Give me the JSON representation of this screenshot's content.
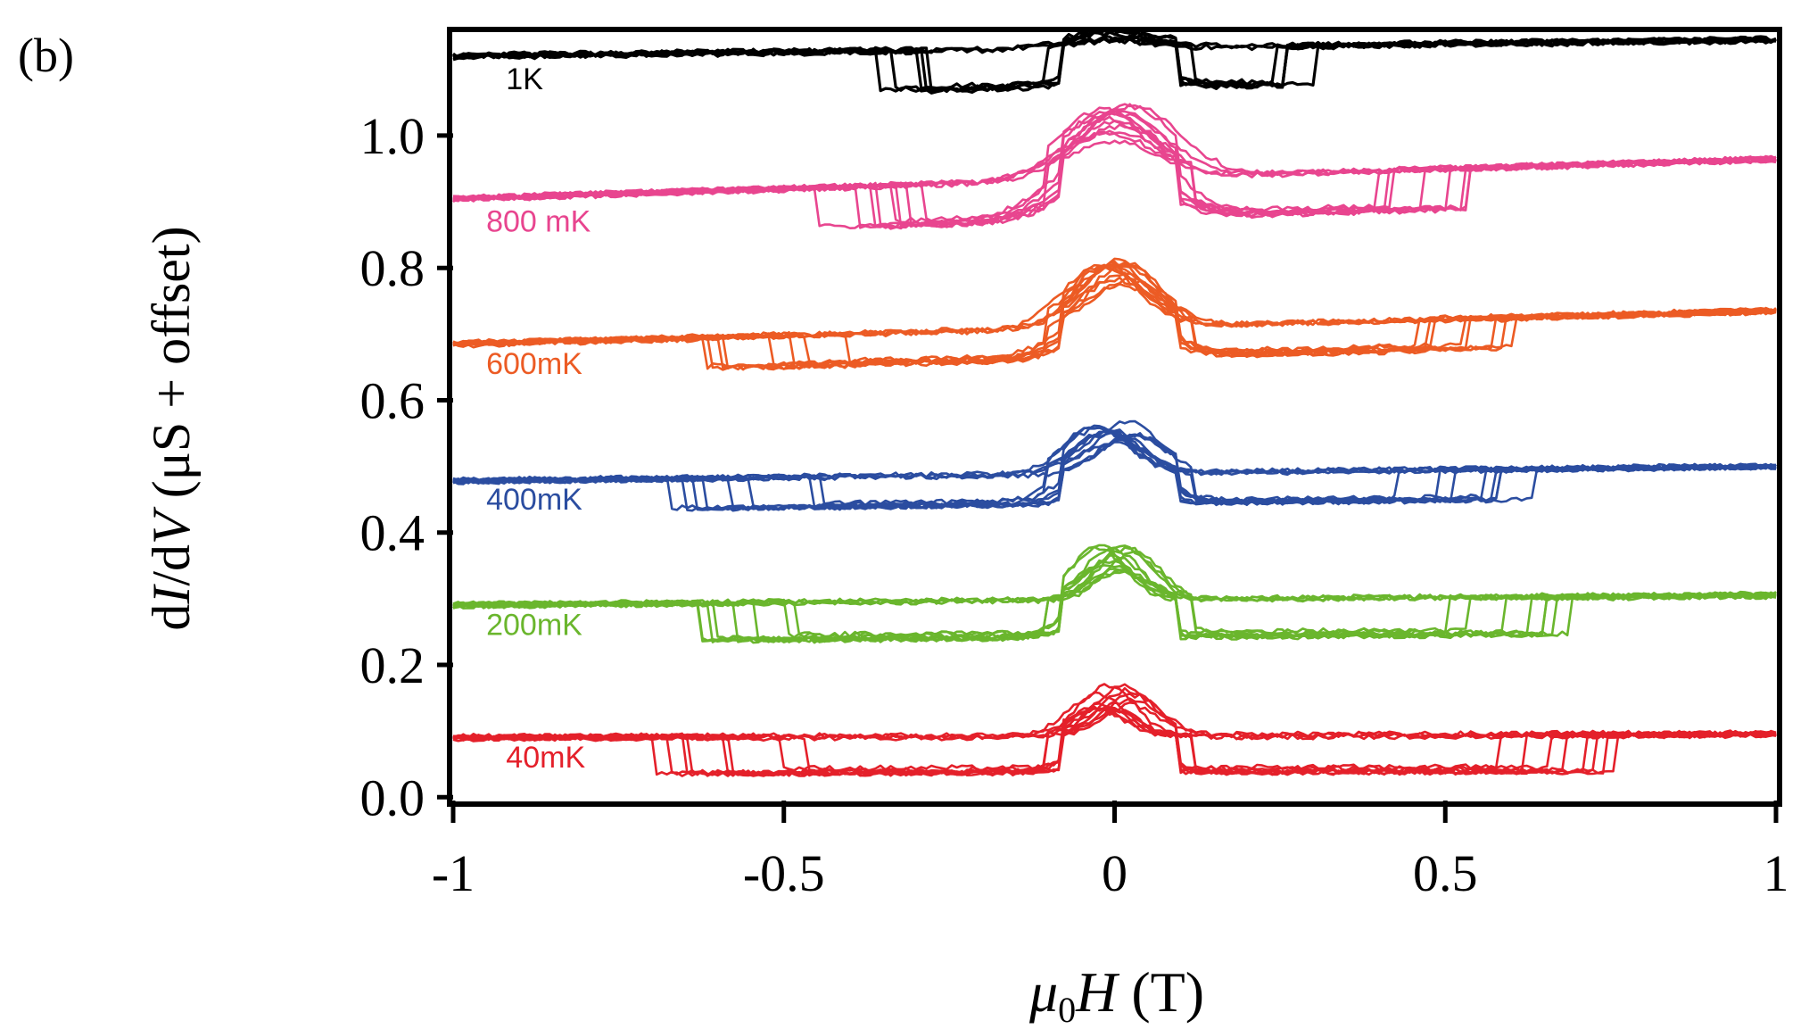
{
  "panel_label": "(b)",
  "chart_data": {
    "type": "line",
    "title": "",
    "xlabel": {
      "symbol": "μ",
      "subscript": "0",
      "variable": "H",
      "unit": " (T)"
    },
    "ylabel": {
      "prefix": "d",
      "i_var": "I",
      "mid": "/d",
      "v_var": "V",
      "unit": " (μS + offset)"
    },
    "xlim": [
      -1,
      1
    ],
    "ylim": [
      -0.005,
      1.155
    ],
    "xticks": [
      -1,
      -0.5,
      0,
      0.5,
      1
    ],
    "xtick_labels": [
      "-1",
      "-0.5",
      "0",
      "0.5",
      "1"
    ],
    "yticks": [
      0.0,
      0.2,
      0.4,
      0.6,
      0.8,
      1.0
    ],
    "ytick_labels": [
      "0.0",
      "0.2",
      "0.4",
      "0.6",
      "0.8",
      "1.0"
    ],
    "grid": false,
    "series": [
      {
        "name": "1K",
        "color": "#000000",
        "label_x": -0.92,
        "label_y": 1.07,
        "baseline_left": 1.12,
        "baseline_right": 1.145,
        "dip": 0.06,
        "switch_min": -0.4,
        "switch_max": 0.32,
        "peak": 0.02,
        "peak_width": 0.1,
        "sweeps": 7
      },
      {
        "name": "800 mK",
        "color": "#e8458f",
        "label_x": -0.95,
        "label_y": 0.855,
        "baseline_left": 0.905,
        "baseline_right": 0.965,
        "dip": 0.06,
        "switch_min": -0.46,
        "switch_max": 0.55,
        "peak": 0.1,
        "peak_width": 0.1,
        "sweeps": 12
      },
      {
        "name": "600mK",
        "color": "#ec5b24",
        "label_x": -0.95,
        "label_y": 0.64,
        "baseline_left": 0.685,
        "baseline_right": 0.735,
        "dip": 0.045,
        "switch_min": -0.63,
        "switch_max": 0.63,
        "peak": 0.095,
        "peak_width": 0.08,
        "sweeps": 12
      },
      {
        "name": "400mK",
        "color": "#2b4da0",
        "label_x": -0.95,
        "label_y": 0.435,
        "baseline_left": 0.478,
        "baseline_right": 0.5,
        "dip": 0.045,
        "switch_min": -0.69,
        "switch_max": 0.66,
        "peak": 0.07,
        "peak_width": 0.07,
        "sweeps": 12
      },
      {
        "name": "200mK",
        "color": "#6ab62d",
        "label_x": -0.95,
        "label_y": 0.245,
        "baseline_left": 0.29,
        "baseline_right": 0.305,
        "dip": 0.055,
        "switch_min": -0.69,
        "switch_max": 0.72,
        "peak": 0.075,
        "peak_width": 0.06,
        "sweeps": 12
      },
      {
        "name": "40mK",
        "color": "#e4202a",
        "label_x": -0.92,
        "label_y": 0.045,
        "baseline_left": 0.09,
        "baseline_right": 0.095,
        "dip": 0.055,
        "switch_min": -0.7,
        "switch_max": 0.78,
        "peak": 0.07,
        "peak_width": 0.06,
        "sweeps": 12
      }
    ]
  }
}
